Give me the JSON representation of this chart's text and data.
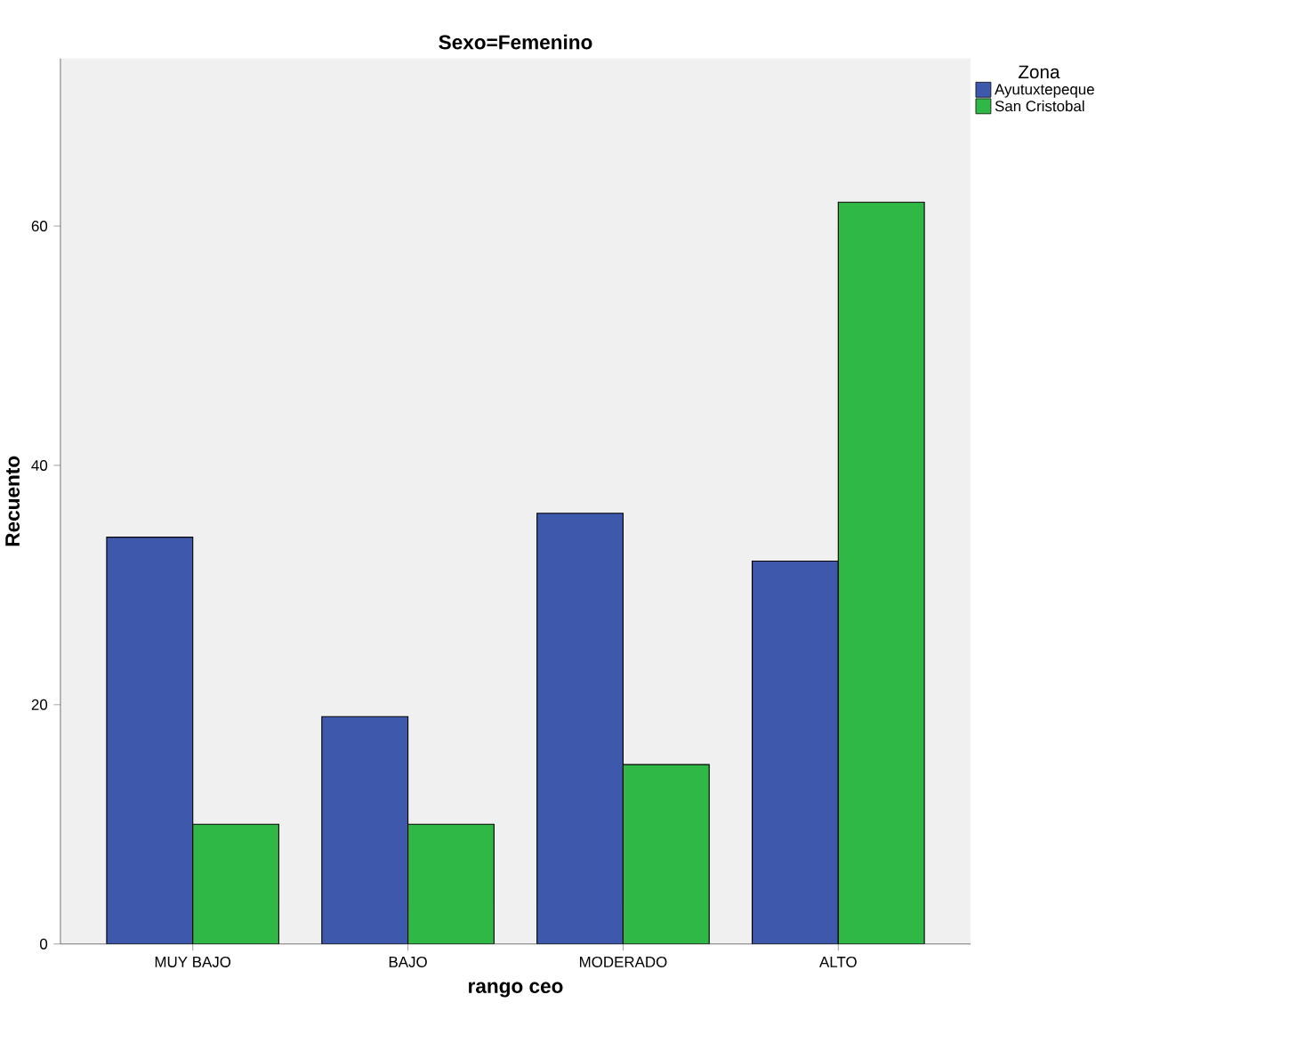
{
  "chart_data": {
    "type": "bar",
    "title": "Sexo=Femenino",
    "xlabel": "rango ceo",
    "ylabel": "Recuento",
    "legend_title": "Zona",
    "categories": [
      "MUY BAJO",
      "BAJO",
      "MODERADO",
      "ALTO"
    ],
    "series": [
      {
        "name": "Ayutuxtepeque",
        "color": "#3e58ac",
        "values": [
          34,
          19,
          36,
          32
        ]
      },
      {
        "name": "San Cristobal",
        "color": "#2fb845",
        "values": [
          10,
          10,
          15,
          62
        ]
      }
    ],
    "ylim": [
      0,
      74
    ],
    "yticks": [
      0,
      20,
      40,
      60
    ],
    "legend": "top right"
  }
}
